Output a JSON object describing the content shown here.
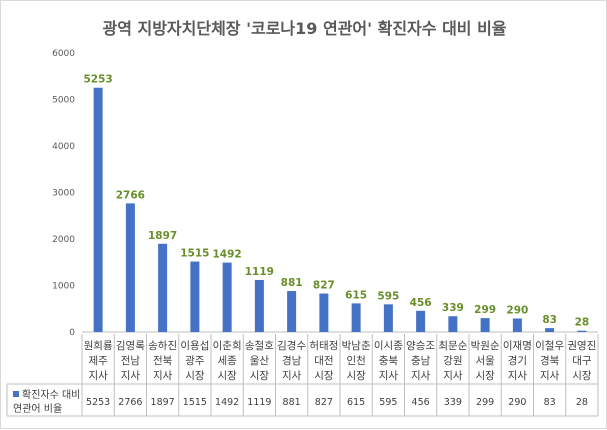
{
  "chart_data": {
    "type": "bar",
    "title": "광역 지방자치단체장 '코로나19 연관어' 확진자수 대비 비율",
    "ylim": [
      0,
      6000
    ],
    "yticks": [
      0,
      1000,
      2000,
      3000,
      4000,
      5000,
      6000
    ],
    "grid": false,
    "bar_color": "#4472c4",
    "label_color": "#6a8e2b",
    "categories": [
      {
        "name": "원희룡",
        "region": "제주",
        "role": "지사"
      },
      {
        "name": "김영록",
        "region": "전남",
        "role": "지사"
      },
      {
        "name": "송하진",
        "region": "전북",
        "role": "지사"
      },
      {
        "name": "이용섭",
        "region": "광주",
        "role": "시장"
      },
      {
        "name": "이춘희",
        "region": "세종",
        "role": "시장"
      },
      {
        "name": "송철호",
        "region": "울산",
        "role": "시장"
      },
      {
        "name": "김경수",
        "region": "경남",
        "role": "지사"
      },
      {
        "name": "허태정",
        "region": "대전",
        "role": "시장"
      },
      {
        "name": "박남춘",
        "region": "인천",
        "role": "시장"
      },
      {
        "name": "이시종",
        "region": "충북",
        "role": "지사"
      },
      {
        "name": "양승조",
        "region": "충남",
        "role": "지사"
      },
      {
        "name": "최문순",
        "region": "강원",
        "role": "지사"
      },
      {
        "name": "박원순",
        "region": "서울",
        "role": "시장"
      },
      {
        "name": "이재명",
        "region": "경기",
        "role": "지사"
      },
      {
        "name": "이철우",
        "region": "경북",
        "role": "지사"
      },
      {
        "name": "권영진",
        "region": "대구",
        "role": "시장"
      }
    ],
    "series": [
      {
        "name": [
          "확진자수 대비",
          "연관어 비율"
        ],
        "values": [
          5253,
          2766,
          1897,
          1515,
          1492,
          1119,
          881,
          827,
          615,
          595,
          456,
          339,
          299,
          290,
          83,
          28
        ]
      }
    ]
  }
}
